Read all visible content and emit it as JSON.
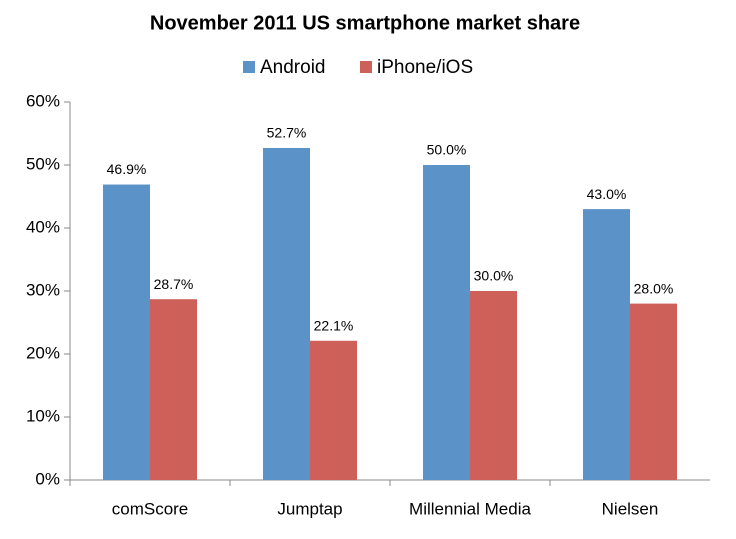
{
  "chart_data": {
    "type": "bar",
    "title": "November 2011 US smartphone market share",
    "categories": [
      "comScore",
      "Jumptap",
      "Millennial Media",
      "Nielsen"
    ],
    "series": [
      {
        "name": "Android",
        "color": "#5b93c9",
        "values": [
          46.9,
          52.7,
          50.0,
          43.0
        ],
        "value_labels": [
          "46.9%",
          "52.7%",
          "50.0%",
          "43.0%"
        ]
      },
      {
        "name": "iPhone/iOS",
        "color": "#cd6059",
        "values": [
          28.7,
          22.1,
          30.0,
          28.0
        ],
        "value_labels": [
          "28.7%",
          "22.1%",
          "30.0%",
          "28.0%"
        ]
      }
    ],
    "ylim": [
      0,
      60
    ],
    "yticks": [
      {
        "value": 0,
        "label": "0%"
      },
      {
        "value": 10,
        "label": "10%"
      },
      {
        "value": 20,
        "label": "20%"
      },
      {
        "value": 30,
        "label": "30%"
      },
      {
        "value": 40,
        "label": "40%"
      },
      {
        "value": 50,
        "label": "50%"
      },
      {
        "value": 60,
        "label": "60%"
      }
    ],
    "legend": "top",
    "grid": false
  }
}
